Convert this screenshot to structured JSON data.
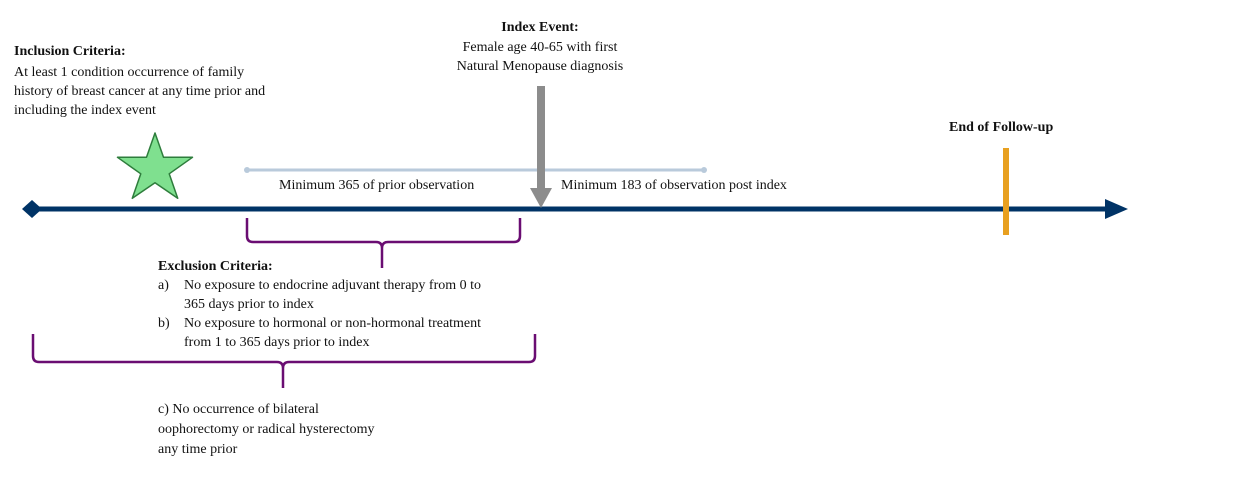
{
  "inclusion": {
    "title": "Inclusion Criteria:",
    "lines": [
      "At least 1 condition occurrence of family",
      "history of breast cancer at any time prior and",
      "including the index event"
    ]
  },
  "index_event": {
    "title": "Index Event:",
    "lines": [
      "Female age 40-65 with first",
      "Natural Menopause diagnosis"
    ]
  },
  "end_followup": {
    "label": "End of Follow-up"
  },
  "prior_observation": {
    "label": "Minimum 365 of prior observation"
  },
  "post_observation": {
    "label": "Minimum 183 of observation post index"
  },
  "exclusion": {
    "title": "Exclusion Criteria:",
    "item_a": {
      "marker": "a)",
      "lines": [
        "No exposure to endocrine adjuvant therapy from 0 to",
        "365 days prior to index"
      ]
    },
    "item_b": {
      "marker": "b)",
      "lines": [
        "No exposure to hormonal or non-hormonal treatment",
        "from 1 to 365 days prior to index"
      ]
    },
    "item_c": {
      "lines": [
        "c) No occurrence of bilateral",
        "oophorectomy or radical hysterectomy",
        "any time prior"
      ]
    }
  },
  "colors": {
    "timeline": "#003366",
    "arrow_index": "#8c8c8c",
    "star_fill": "#7fe08f",
    "star_stroke": "#2e7d3c",
    "followup_bar": "#e8a020",
    "brace": "#6a0d72",
    "observation_line": "#b9cadb"
  }
}
